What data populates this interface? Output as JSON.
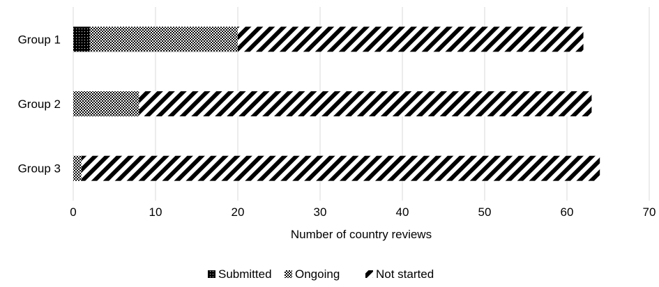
{
  "chart_data": {
    "type": "bar",
    "orientation": "horizontal",
    "stacked": true,
    "categories": [
      "Group 1",
      "Group 2",
      "Group 3"
    ],
    "series": [
      {
        "name": "Submitted",
        "values": [
          2,
          0,
          0
        ],
        "pattern": "solid-dotted"
      },
      {
        "name": "Ongoing",
        "values": [
          18,
          8,
          1
        ],
        "pattern": "dotted-grid"
      },
      {
        "name": "Not started",
        "values": [
          42,
          55,
          63
        ],
        "pattern": "diagonal-hatch"
      }
    ],
    "xlabel": "Number of country reviews",
    "ylabel": "",
    "xlim": [
      0,
      70
    ],
    "xticks": [
      "0",
      "10",
      "20",
      "30",
      "40",
      "50",
      "60",
      "70"
    ],
    "grid": "vertical",
    "legend_position": "bottom",
    "colors": {
      "ink": "#000000",
      "grid": "#d9d9d9",
      "background": "#ffffff"
    }
  }
}
